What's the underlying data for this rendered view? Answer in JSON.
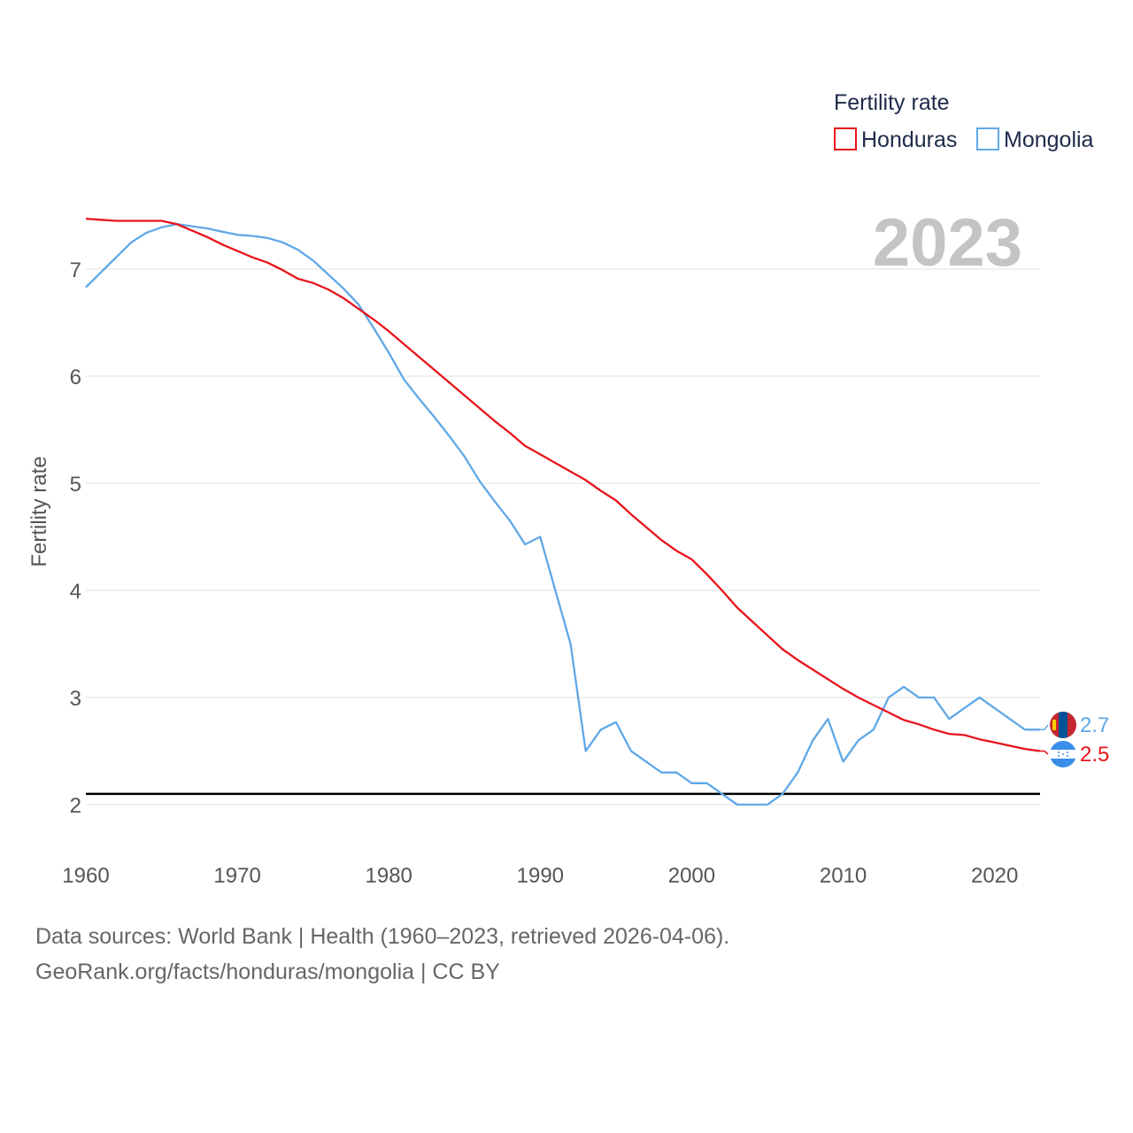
{
  "chart_data": {
    "type": "line",
    "legend_title": "Fertility rate",
    "ylabel": "Fertility rate",
    "year_label": "2023",
    "xlim": [
      1960,
      2023
    ],
    "ylim": [
      1.6,
      7.7
    ],
    "x_ticks": [
      1960,
      1970,
      1980,
      1990,
      2000,
      2010,
      2020
    ],
    "y_ticks": [
      2,
      3,
      4,
      5,
      6,
      7
    ],
    "reference_line": 2.1,
    "x": [
      1960,
      1961,
      1962,
      1963,
      1964,
      1965,
      1966,
      1967,
      1968,
      1969,
      1970,
      1971,
      1972,
      1973,
      1974,
      1975,
      1976,
      1977,
      1978,
      1979,
      1980,
      1981,
      1982,
      1983,
      1984,
      1985,
      1986,
      1987,
      1988,
      1989,
      1990,
      1991,
      1992,
      1993,
      1994,
      1995,
      1996,
      1997,
      1998,
      1999,
      2000,
      2001,
      2002,
      2003,
      2004,
      2005,
      2006,
      2007,
      2008,
      2009,
      2010,
      2011,
      2012,
      2013,
      2014,
      2015,
      2016,
      2017,
      2018,
      2019,
      2020,
      2021,
      2022,
      2023
    ],
    "series": [
      {
        "name": "Honduras",
        "color": "#e8141b",
        "end_label": "2.5",
        "values": [
          7.47,
          7.46,
          7.45,
          7.45,
          7.45,
          7.45,
          7.42,
          7.36,
          7.3,
          7.23,
          7.17,
          7.11,
          7.06,
          6.99,
          6.91,
          6.87,
          6.81,
          6.73,
          6.63,
          6.53,
          6.42,
          6.3,
          6.18,
          6.06,
          5.94,
          5.82,
          5.7,
          5.58,
          5.47,
          5.35,
          5.27,
          5.19,
          5.11,
          5.03,
          4.93,
          4.84,
          4.71,
          4.59,
          4.47,
          4.37,
          4.29,
          4.15,
          4.0,
          3.84,
          3.71,
          3.58,
          3.45,
          3.35,
          3.26,
          3.17,
          3.08,
          3.0,
          2.93,
          2.86,
          2.79,
          2.75,
          2.7,
          2.66,
          2.65,
          2.61,
          2.58,
          2.55,
          2.52,
          2.5
        ]
      },
      {
        "name": "Mongolia",
        "color": "#5fa8e8",
        "end_label": "2.7",
        "values": [
          6.83,
          6.97,
          7.11,
          7.25,
          7.34,
          7.39,
          7.42,
          7.4,
          7.38,
          7.35,
          7.32,
          7.31,
          7.29,
          7.25,
          7.18,
          7.08,
          6.95,
          6.82,
          6.67,
          6.45,
          6.22,
          5.97,
          5.79,
          5.62,
          5.44,
          5.25,
          5.02,
          4.83,
          4.65,
          4.43,
          4.5,
          4.0,
          3.5,
          2.5,
          2.7,
          2.77,
          2.5,
          2.4,
          2.3,
          2.3,
          2.2,
          2.2,
          2.1,
          2.0,
          2.0,
          2.0,
          2.1,
          2.3,
          2.6,
          2.8,
          2.4,
          2.6,
          2.7,
          3.0,
          3.1,
          3.0,
          3.0,
          2.8,
          2.9,
          3.0,
          2.9,
          2.8,
          2.7,
          2.7
        ]
      }
    ]
  },
  "source": {
    "line1": "Data sources: World Bank | Health (1960–2023, retrieved 2026-04-06).",
    "line2": "GeoRank.org/facts/honduras/mongolia | CC BY"
  }
}
